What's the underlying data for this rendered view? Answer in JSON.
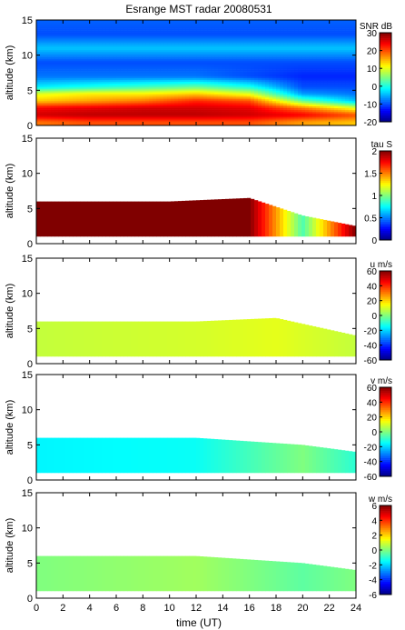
{
  "title": "Esrange MST radar 20080531",
  "chart_data": {
    "type": "heatmap",
    "title": "Esrange MST radar 20080531",
    "xlabel": "time (UT)",
    "xlim": [
      0,
      24
    ],
    "xticks": [
      0,
      2,
      4,
      6,
      8,
      10,
      12,
      14,
      16,
      18,
      20,
      22,
      24
    ],
    "shared_x_axis": true,
    "panels": [
      {
        "quantity": "SNR",
        "colorbar_label": "SNR dB",
        "ylabel": "altitude (km)",
        "ylim": [
          0,
          15
        ],
        "yticks": [
          0,
          5,
          10,
          15
        ],
        "clim": [
          -20,
          30
        ],
        "cticks": [
          -20,
          -10,
          0,
          10,
          20,
          30
        ],
        "data": [
          {
            "time": 0,
            "values_by_altitude_km": {
              "0.5": 18,
              "1.5": 26,
              "2.5": 24,
              "3.5": 14,
              "4.5": 10,
              "5.5": -2,
              "7": -8,
              "9": -10,
              "11": -4,
              "13": -10,
              "15": -9
            }
          },
          {
            "time": 4,
            "values_by_altitude_km": {
              "0.5": 20,
              "1.5": 27,
              "2.5": 25,
              "3.5": 16,
              "4.5": 12,
              "5.5": 0,
              "7": -8,
              "9": -10,
              "11": -4,
              "13": -10,
              "15": -9
            }
          },
          {
            "time": 8,
            "values_by_altitude_km": {
              "0.5": 20,
              "1.5": 27,
              "2.5": 26,
              "3.5": 18,
              "4.5": 12,
              "5.5": 2,
              "7": -8,
              "9": -10,
              "11": -4,
              "13": -10,
              "15": -9
            }
          },
          {
            "time": 12,
            "values_by_altitude_km": {
              "0.5": 20,
              "1.5": 27,
              "2.5": 26,
              "3.5": 22,
              "4.5": 14,
              "5.5": 4,
              "7": -8,
              "9": -10,
              "11": -4,
              "13": -10,
              "15": -9
            }
          },
          {
            "time": 16,
            "values_by_altitude_km": {
              "0.5": 20,
              "1.5": 26,
              "2.5": 25,
              "3.5": 20,
              "4.5": 10,
              "5.5": 0,
              "7": -10,
              "9": -10,
              "11": -4,
              "13": -10,
              "15": -9
            }
          },
          {
            "time": 20,
            "values_by_altitude_km": {
              "0.5": 16,
              "1.5": 24,
              "2.5": 18,
              "3.5": 4,
              "4.5": -6,
              "5.5": -10,
              "7": -12,
              "9": -10,
              "11": -4,
              "13": -10,
              "15": -9
            }
          },
          {
            "time": 24,
            "values_by_altitude_km": {
              "0.5": 14,
              "1.5": 20,
              "2.5": 10,
              "3.5": -4,
              "4.5": -8,
              "5.5": -10,
              "7": -12,
              "9": -10,
              "11": -4,
              "13": -10,
              "15": -9
            }
          }
        ]
      },
      {
        "quantity": "tau",
        "colorbar_label": "tau S",
        "ylabel": "altitude (km)",
        "ylim": [
          0,
          15
        ],
        "yticks": [
          0,
          5,
          10,
          15
        ],
        "clim": [
          0,
          2
        ],
        "cticks": [
          0,
          0.5,
          1,
          1.5,
          2
        ],
        "data": [
          {
            "time": 0,
            "valid_altitude_km": [
              1,
              6
            ],
            "value": 2.0
          },
          {
            "time": 10,
            "valid_altitude_km": [
              1,
              6
            ],
            "value": 2.0
          },
          {
            "time": 16,
            "valid_altitude_km": [
              1,
              6.5
            ],
            "value": 2.0
          },
          {
            "time": 20,
            "valid_altitude_km": [
              1,
              4
            ],
            "value": 0.9
          },
          {
            "time": 24,
            "valid_altitude_km": [
              1,
              2.5
            ],
            "value": 2.0
          }
        ]
      },
      {
        "quantity": "u",
        "colorbar_label": "u m/s",
        "ylabel": "altitude (km)",
        "ylim": [
          0,
          15
        ],
        "yticks": [
          0,
          5,
          10,
          15
        ],
        "clim": [
          -60,
          60
        ],
        "cticks": [
          -60,
          -40,
          -20,
          0,
          20,
          40,
          60
        ],
        "data": [
          {
            "time": 0,
            "valid_altitude_km": [
              1,
              6
            ],
            "value": 8
          },
          {
            "time": 12,
            "valid_altitude_km": [
              1,
              6
            ],
            "value": 10
          },
          {
            "time": 18,
            "valid_altitude_km": [
              1,
              6.5
            ],
            "value": 12
          },
          {
            "time": 24,
            "valid_altitude_km": [
              1,
              4
            ],
            "value": 8
          }
        ]
      },
      {
        "quantity": "v",
        "colorbar_label": "v m/s",
        "ylabel": "altitude (km)",
        "ylim": [
          0,
          15
        ],
        "yticks": [
          0,
          5,
          10,
          15
        ],
        "clim": [
          -60,
          60
        ],
        "cticks": [
          -60,
          -40,
          -20,
          0,
          20,
          40,
          60
        ],
        "data": [
          {
            "time": 0,
            "valid_altitude_km": [
              1,
              6
            ],
            "value": -16
          },
          {
            "time": 12,
            "valid_altitude_km": [
              1,
              6
            ],
            "value": -14
          },
          {
            "time": 20,
            "valid_altitude_km": [
              1,
              5
            ],
            "value": 0
          },
          {
            "time": 24,
            "valid_altitude_km": [
              1,
              4
            ],
            "value": -10
          }
        ]
      },
      {
        "quantity": "w",
        "colorbar_label": "w m/s",
        "ylabel": "altitude (km)",
        "ylim": [
          0,
          15
        ],
        "yticks": [
          0,
          5,
          10,
          15
        ],
        "clim": [
          -6,
          6
        ],
        "cticks": [
          -6,
          -4,
          -2,
          0,
          2,
          4,
          6
        ],
        "data": [
          {
            "time": 0,
            "valid_altitude_km": [
              1,
              6
            ],
            "value": 0
          },
          {
            "time": 12,
            "valid_altitude_km": [
              1,
              6
            ],
            "value": 0.4
          },
          {
            "time": 20,
            "valid_altitude_km": [
              1,
              5
            ],
            "value": -0.4
          },
          {
            "time": 24,
            "valid_altitude_km": [
              1,
              4
            ],
            "value": 0
          }
        ]
      }
    ]
  }
}
